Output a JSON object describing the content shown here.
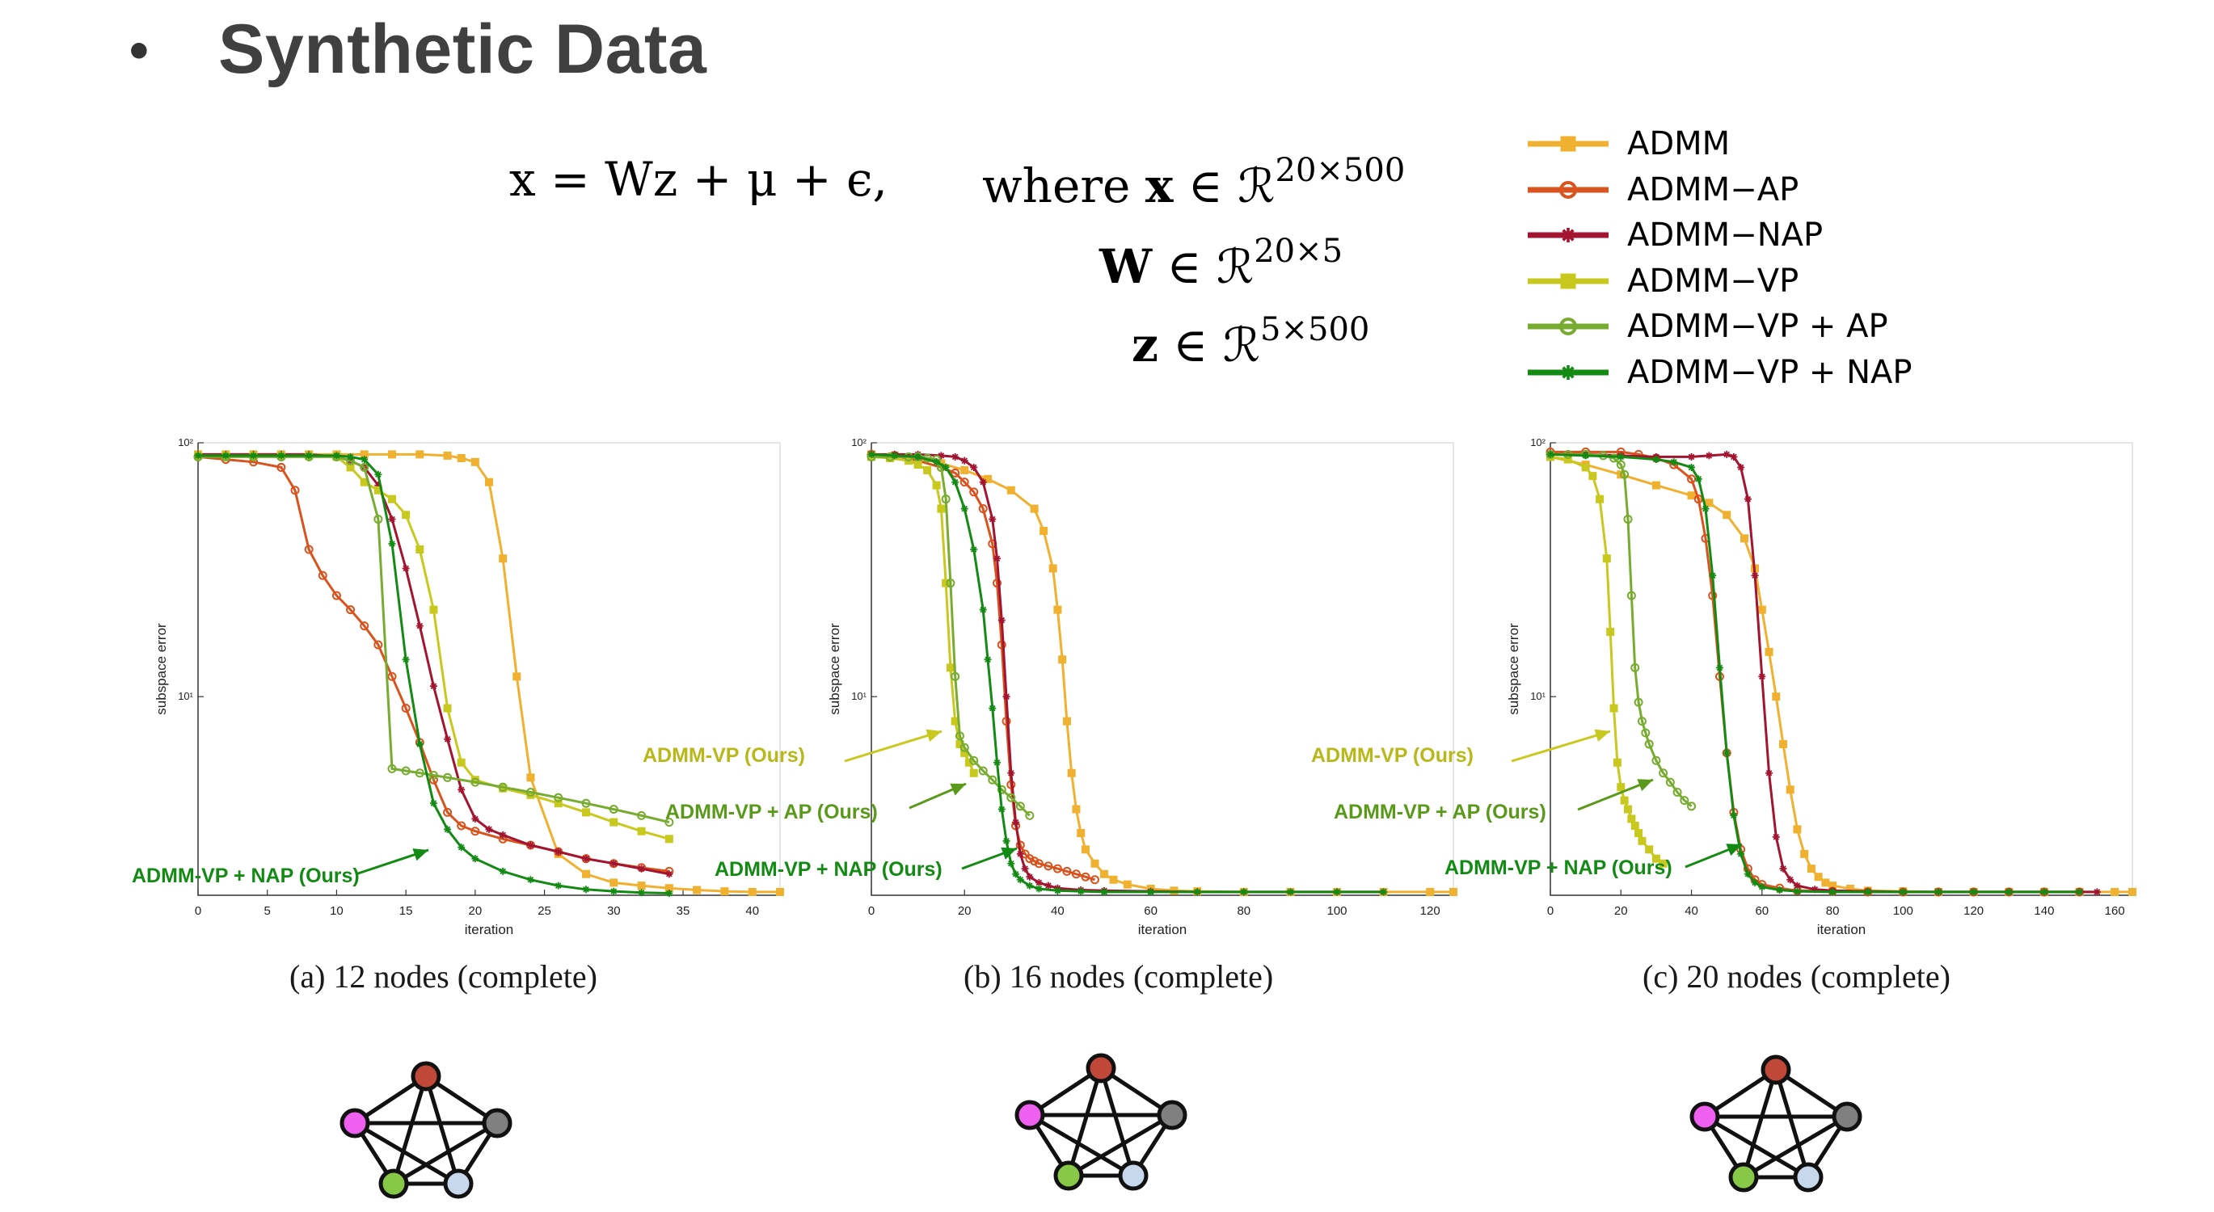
{
  "heading": {
    "bullet": "•",
    "title": "Synthetic Data"
  },
  "equation": {
    "line1_lhs": "x = Wz + μ + ϵ,",
    "where_word": "where",
    "x_var": "x",
    "w_var": "W",
    "z_var": "z",
    "in_symbol": "∈",
    "space_symbol": "ℛ",
    "x_dims": "20×500",
    "w_dims": "20×5",
    "z_dims": "5×500"
  },
  "legend": [
    {
      "label": "ADMM",
      "color": "#F0B030",
      "marker": "square"
    },
    {
      "label": "ADMM−AP",
      "color": "#D9531E",
      "marker": "circle"
    },
    {
      "label": "ADMM−NAP",
      "color": "#A2142F",
      "marker": "star"
    },
    {
      "label": "ADMM−VP",
      "color": "#C8C81E",
      "marker": "square"
    },
    {
      "label": "ADMM−VP + AP",
      "color": "#77AC30",
      "marker": "circle"
    },
    {
      "label": "ADMM−VP + NAP",
      "color": "#138A13",
      "marker": "star"
    }
  ],
  "captions": [
    "(a) 12 nodes (complete)",
    "(b) 16 nodes (complete)",
    "(c) 20 nodes (complete)"
  ],
  "annotations": {
    "vp": "ADMM-VP (Ours)",
    "vp_ap": "ADMM-VP + AP (Ours)",
    "vp_nap": "ADMM-VP + NAP (Ours)",
    "vp_color": "#C8C81E",
    "vp_ap_color": "#5A9A1A",
    "vp_nap_color": "#138A13"
  },
  "node_colors": [
    "#F060F0",
    "#C04838",
    "#808080",
    "#88C848",
    "#C8D8EC"
  ],
  "chart_data": [
    {
      "type": "line",
      "caption": "(a) 12 nodes (complete)",
      "xlabel": "iteration",
      "ylabel": "subspace error",
      "yscale": "log",
      "xlim": [
        0,
        42
      ],
      "ylim": [
        1.65,
        100
      ],
      "xticks": [
        0,
        5,
        10,
        15,
        20,
        25,
        30,
        35,
        40
      ],
      "yticks": [
        {
          "value": 100,
          "label": "10²"
        },
        {
          "value": 10,
          "label": "10¹"
        }
      ],
      "series": [
        {
          "name": "ADMM",
          "x": [
            0,
            2,
            4,
            6,
            8,
            10,
            12,
            14,
            16,
            18,
            19,
            20,
            21,
            22,
            23,
            24,
            26,
            28,
            30,
            32,
            34,
            36,
            38,
            40,
            42
          ],
          "y": [
            90,
            90,
            90,
            90,
            90,
            90,
            90,
            90,
            90,
            89,
            87,
            84,
            70,
            35,
            12,
            4.8,
            2.4,
            2.0,
            1.85,
            1.8,
            1.76,
            1.73,
            1.71,
            1.7,
            1.7
          ]
        },
        {
          "name": "ADMM−AP",
          "x": [
            0,
            2,
            4,
            6,
            7,
            8,
            9,
            10,
            11,
            12,
            13,
            14,
            15,
            16,
            17,
            18,
            19,
            20,
            22,
            24,
            26,
            28,
            30,
            32,
            34
          ],
          "y": [
            88,
            86,
            84,
            80,
            65,
            38,
            30,
            25,
            22,
            19,
            16,
            12,
            9,
            6.6,
            4.7,
            3.5,
            3.1,
            2.95,
            2.75,
            2.6,
            2.45,
            2.3,
            2.2,
            2.12,
            2.05
          ]
        },
        {
          "name": "ADMM−NAP",
          "x": [
            0,
            2,
            4,
            6,
            8,
            10,
            11,
            12,
            13,
            14,
            15,
            16,
            17,
            18,
            19,
            20,
            21,
            22,
            24,
            26,
            28,
            30,
            32,
            34
          ],
          "y": [
            90,
            90,
            90,
            90,
            90,
            88,
            85,
            80,
            68,
            50,
            32,
            19,
            11,
            6.8,
            4.3,
            3.3,
            3.0,
            2.85,
            2.6,
            2.45,
            2.3,
            2.2,
            2.1,
            2.0
          ]
        },
        {
          "name": "ADMM−VP",
          "x": [
            0,
            2,
            4,
            6,
            8,
            10,
            11,
            12,
            13,
            14,
            15,
            16,
            17,
            18,
            19,
            20,
            22,
            24,
            26,
            28,
            30,
            32,
            34
          ],
          "y": [
            89,
            89,
            89,
            89,
            89,
            88,
            80,
            70,
            65,
            60,
            52,
            38,
            22,
            9,
            5.5,
            4.7,
            4.35,
            4.1,
            3.8,
            3.5,
            3.2,
            2.95,
            2.75
          ]
        },
        {
          "name": "ADMM−VP + AP",
          "x": [
            0,
            2,
            4,
            6,
            8,
            10,
            11,
            12,
            13,
            14,
            15,
            16,
            17,
            18,
            20,
            22,
            24,
            26,
            28,
            30,
            32,
            34
          ],
          "y": [
            88,
            88,
            88,
            88,
            88,
            88,
            85,
            80,
            50,
            5.2,
            5.1,
            5.0,
            4.9,
            4.8,
            4.6,
            4.4,
            4.2,
            4.0,
            3.8,
            3.6,
            3.4,
            3.2
          ]
        },
        {
          "name": "ADMM−VP + NAP",
          "x": [
            0,
            2,
            4,
            6,
            8,
            10,
            11,
            12,
            13,
            14,
            15,
            16,
            17,
            18,
            19,
            20,
            22,
            24,
            26,
            28,
            30,
            32,
            34
          ],
          "y": [
            89,
            89,
            89,
            89,
            89,
            89,
            88,
            86,
            75,
            40,
            14,
            6.5,
            3.8,
            3.0,
            2.55,
            2.3,
            2.05,
            1.9,
            1.8,
            1.74,
            1.71,
            1.69,
            1.68
          ]
        }
      ]
    },
    {
      "type": "line",
      "caption": "(b) 16 nodes (complete)",
      "xlabel": "iteration",
      "ylabel": "subspace error",
      "yscale": "log",
      "xlim": [
        0,
        125
      ],
      "ylim": [
        1.65,
        100
      ],
      "xticks": [
        0,
        20,
        40,
        60,
        80,
        100,
        120
      ],
      "yticks": [
        {
          "value": 100,
          "label": "10²"
        },
        {
          "value": 10,
          "label": "10¹"
        }
      ],
      "series": [
        {
          "name": "ADMM",
          "x": [
            0,
            5,
            10,
            15,
            20,
            25,
            30,
            35,
            37,
            39,
            40,
            41,
            42,
            43,
            44,
            45,
            46,
            48,
            50,
            52,
            55,
            60,
            65,
            70,
            80,
            90,
            100,
            110,
            120,
            125
          ],
          "y": [
            90,
            89,
            87,
            83,
            78,
            72,
            65,
            55,
            45,
            32,
            22,
            14,
            8,
            5,
            3.6,
            2.9,
            2.5,
            2.2,
            2.0,
            1.9,
            1.82,
            1.75,
            1.72,
            1.71,
            1.7,
            1.7,
            1.7,
            1.7,
            1.7,
            1.7
          ]
        },
        {
          "name": "ADMM−AP",
          "x": [
            0,
            5,
            10,
            15,
            18,
            20,
            22,
            24,
            26,
            27,
            28,
            29,
            30,
            31,
            32,
            33,
            34,
            35,
            36,
            38,
            40,
            42,
            44,
            46,
            48
          ],
          "y": [
            90,
            89,
            85,
            80,
            76,
            70,
            64,
            55,
            40,
            28,
            16,
            8,
            4.5,
            3.1,
            2.6,
            2.4,
            2.3,
            2.25,
            2.2,
            2.15,
            2.1,
            2.05,
            2.0,
            1.95,
            1.9
          ]
        },
        {
          "name": "ADMM−NAP",
          "x": [
            0,
            5,
            10,
            15,
            18,
            20,
            22,
            24,
            26,
            27,
            28,
            29,
            30,
            31,
            32,
            33,
            34,
            36,
            38,
            40,
            45,
            50,
            60,
            70,
            80,
            90,
            100,
            110
          ],
          "y": [
            90,
            90,
            90,
            89,
            88,
            85,
            80,
            70,
            50,
            35,
            20,
            10,
            5,
            3.2,
            2.4,
            2.1,
            1.95,
            1.85,
            1.8,
            1.76,
            1.73,
            1.72,
            1.71,
            1.7,
            1.7,
            1.7,
            1.7,
            1.7
          ]
        },
        {
          "name": "ADMM−VP",
          "x": [
            0,
            4,
            8,
            10,
            12,
            14,
            15,
            16,
            17,
            18,
            19,
            20,
            21,
            22
          ],
          "y": [
            88,
            87,
            85,
            82,
            78,
            68,
            55,
            28,
            13,
            8,
            6.5,
            6.0,
            5.5,
            5.0
          ]
        },
        {
          "name": "ADMM−VP + AP",
          "x": [
            0,
            4,
            8,
            10,
            12,
            14,
            15,
            16,
            17,
            18,
            19,
            20,
            22,
            24,
            26,
            28,
            30,
            32,
            34
          ],
          "y": [
            88,
            88,
            88,
            88,
            87,
            86,
            80,
            60,
            28,
            12,
            7,
            6.3,
            5.6,
            5.1,
            4.7,
            4.3,
            4.0,
            3.7,
            3.4
          ]
        },
        {
          "name": "ADMM−VP + NAP",
          "x": [
            0,
            5,
            10,
            14,
            16,
            18,
            20,
            22,
            24,
            25,
            26,
            27,
            28,
            29,
            30,
            31,
            32,
            34,
            36,
            40,
            45,
            50,
            60,
            70,
            80,
            90,
            100,
            110
          ],
          "y": [
            90,
            89,
            88,
            84,
            80,
            70,
            55,
            38,
            22,
            14,
            9,
            5.5,
            3.6,
            2.7,
            2.2,
            2.0,
            1.9,
            1.8,
            1.75,
            1.72,
            1.71,
            1.7,
            1.7,
            1.7,
            1.7,
            1.7,
            1.7,
            1.7
          ]
        }
      ]
    },
    {
      "type": "line",
      "caption": "(c) 20 nodes (complete)",
      "xlabel": "iteration",
      "ylabel": "subspace error",
      "yscale": "log",
      "xlim": [
        0,
        165
      ],
      "ylim": [
        1.65,
        100
      ],
      "xticks": [
        0,
        20,
        40,
        60,
        80,
        100,
        120,
        140,
        160
      ],
      "yticks": [
        {
          "value": 100,
          "label": "10²"
        },
        {
          "value": 10,
          "label": "10¹"
        }
      ],
      "series": [
        {
          "name": "ADMM",
          "x": [
            0,
            10,
            20,
            30,
            40,
            45,
            50,
            55,
            58,
            60,
            62,
            64,
            66,
            68,
            70,
            72,
            74,
            76,
            78,
            80,
            85,
            90,
            100,
            110,
            120,
            130,
            140,
            150,
            160,
            165
          ],
          "y": [
            88,
            82,
            75,
            68,
            62,
            58,
            52,
            42,
            32,
            22,
            15,
            10,
            6.5,
            4.3,
            3.0,
            2.4,
            2.1,
            1.95,
            1.85,
            1.8,
            1.75,
            1.72,
            1.71,
            1.7,
            1.7,
            1.7,
            1.7,
            1.7,
            1.7,
            1.7
          ]
        },
        {
          "name": "ADMM−AP",
          "x": [
            0,
            10,
            20,
            25,
            30,
            35,
            40,
            42,
            44,
            46,
            48,
            50,
            52,
            54,
            56,
            58,
            60,
            65,
            70,
            80,
            90,
            100,
            110,
            120,
            130,
            140,
            150
          ],
          "y": [
            92,
            92,
            92,
            90,
            87,
            82,
            72,
            60,
            42,
            25,
            12,
            6,
            3.5,
            2.5,
            2.1,
            1.9,
            1.82,
            1.76,
            1.72,
            1.71,
            1.7,
            1.7,
            1.7,
            1.7,
            1.7,
            1.7,
            1.7
          ]
        },
        {
          "name": "ADMM−NAP",
          "x": [
            0,
            10,
            20,
            30,
            40,
            45,
            50,
            52,
            54,
            56,
            58,
            60,
            62,
            64,
            66,
            68,
            70,
            75,
            80,
            90,
            100,
            110,
            120,
            130,
            140,
            150,
            155
          ],
          "y": [
            90,
            90,
            89,
            88,
            88,
            89,
            90,
            88,
            80,
            60,
            30,
            12,
            5,
            2.8,
            2.1,
            1.9,
            1.8,
            1.74,
            1.72,
            1.71,
            1.7,
            1.7,
            1.7,
            1.7,
            1.7,
            1.7,
            1.7
          ]
        },
        {
          "name": "ADMM−VP",
          "x": [
            0,
            5,
            10,
            12,
            14,
            16,
            17,
            18,
            19,
            20,
            21,
            22,
            23,
            24,
            25,
            26,
            28,
            30,
            32
          ],
          "y": [
            88,
            86,
            80,
            74,
            60,
            35,
            18,
            9,
            5.5,
            4.4,
            3.9,
            3.6,
            3.3,
            3.1,
            2.9,
            2.7,
            2.5,
            2.3,
            2.2
          ]
        },
        {
          "name": "ADMM−VP + AP",
          "x": [
            0,
            5,
            10,
            15,
            18,
            20,
            21,
            22,
            23,
            24,
            25,
            26,
            27,
            28,
            30,
            32,
            34,
            36,
            38,
            40
          ],
          "y": [
            90,
            90,
            90,
            89,
            87,
            82,
            75,
            50,
            25,
            13,
            9.5,
            8,
            7.2,
            6.5,
            5.6,
            5.0,
            4.6,
            4.2,
            3.9,
            3.7
          ]
        },
        {
          "name": "ADMM−VP + NAP",
          "x": [
            0,
            10,
            20,
            30,
            35,
            40,
            42,
            44,
            46,
            48,
            50,
            52,
            54,
            56,
            58,
            60,
            65,
            70,
            80,
            90,
            100,
            110,
            120,
            130,
            140,
            150
          ],
          "y": [
            90,
            89,
            88,
            86,
            84,
            80,
            72,
            55,
            30,
            13,
            6,
            3.4,
            2.4,
            2.0,
            1.85,
            1.78,
            1.73,
            1.71,
            1.7,
            1.7,
            1.7,
            1.7,
            1.7,
            1.7,
            1.7,
            1.7
          ]
        }
      ]
    }
  ]
}
